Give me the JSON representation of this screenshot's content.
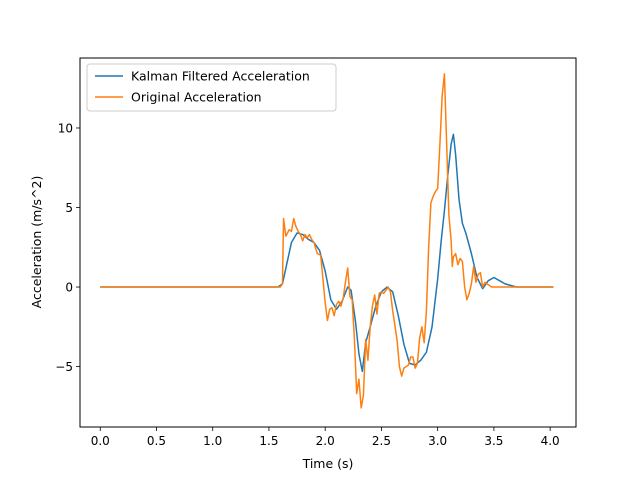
{
  "chart_data": {
    "type": "line",
    "title": "",
    "xlabel": "Time (s)",
    "ylabel": "Acceleration (m/s^2)",
    "xlim": [
      -0.18,
      4.23
    ],
    "ylim": [
      -8.8,
      14.4
    ],
    "xticks": [
      0.0,
      0.5,
      1.0,
      1.5,
      2.0,
      2.5,
      3.0,
      3.5,
      4.0
    ],
    "xtick_labels": [
      "0.0",
      "0.5",
      "1.0",
      "1.5",
      "2.0",
      "2.5",
      "3.0",
      "3.5",
      "4.0"
    ],
    "yticks": [
      -5,
      0,
      5,
      10
    ],
    "ytick_labels": [
      "−5",
      "0",
      "5",
      "10"
    ],
    "grid": false,
    "legend_position": "top-left",
    "series": [
      {
        "name": "Kalman Filtered Acceleration",
        "color": "#1f77b4",
        "x": [
          0.0,
          0.5,
          1.0,
          1.5,
          1.58,
          1.62,
          1.66,
          1.7,
          1.75,
          1.8,
          1.85,
          1.9,
          1.95,
          2.0,
          2.05,
          2.1,
          2.15,
          2.2,
          2.23,
          2.27,
          2.3,
          2.33,
          2.36,
          2.4,
          2.45,
          2.5,
          2.55,
          2.6,
          2.65,
          2.7,
          2.75,
          2.8,
          2.85,
          2.9,
          2.95,
          3.0,
          3.03,
          3.06,
          3.09,
          3.12,
          3.14,
          3.16,
          3.19,
          3.22,
          3.25,
          3.3,
          3.35,
          3.4,
          3.45,
          3.5,
          3.55,
          3.6,
          3.7,
          3.8,
          4.03
        ],
        "y": [
          0.0,
          0.0,
          0.0,
          0.0,
          0.0,
          0.2,
          1.5,
          2.8,
          3.4,
          3.3,
          3.0,
          2.8,
          2.3,
          1.0,
          -0.8,
          -1.4,
          -0.9,
          0.0,
          -0.2,
          -2.2,
          -4.2,
          -5.3,
          -3.5,
          -2.5,
          -1.2,
          -0.3,
          0.0,
          -0.3,
          -1.8,
          -3.6,
          -4.8,
          -4.9,
          -4.6,
          -4.1,
          -2.5,
          0.5,
          2.8,
          4.8,
          7.0,
          9.0,
          9.6,
          8.3,
          5.5,
          4.0,
          3.4,
          2.1,
          0.6,
          -0.1,
          0.4,
          0.6,
          0.4,
          0.2,
          0.0,
          0.0,
          0.0
        ]
      },
      {
        "name": "Original Acceleration",
        "color": "#ff7f0e",
        "x": [
          0.0,
          0.3,
          0.6,
          0.9,
          1.2,
          1.5,
          1.6,
          1.62,
          1.63,
          1.65,
          1.68,
          1.7,
          1.72,
          1.74,
          1.76,
          1.78,
          1.8,
          1.82,
          1.84,
          1.86,
          1.88,
          1.9,
          1.93,
          1.96,
          2.0,
          2.02,
          2.04,
          2.06,
          2.08,
          2.1,
          2.12,
          2.14,
          2.16,
          2.18,
          2.2,
          2.22,
          2.24,
          2.26,
          2.28,
          2.3,
          2.32,
          2.34,
          2.36,
          2.38,
          2.4,
          2.42,
          2.44,
          2.46,
          2.48,
          2.5,
          2.52,
          2.54,
          2.56,
          2.58,
          2.6,
          2.62,
          2.64,
          2.66,
          2.68,
          2.7,
          2.72,
          2.74,
          2.76,
          2.78,
          2.8,
          2.82,
          2.84,
          2.86,
          2.88,
          2.9,
          2.92,
          2.94,
          2.96,
          2.98,
          3.0,
          3.02,
          3.04,
          3.06,
          3.08,
          3.1,
          3.12,
          3.13,
          3.14,
          3.16,
          3.18,
          3.2,
          3.22,
          3.24,
          3.26,
          3.28,
          3.3,
          3.32,
          3.34,
          3.36,
          3.38,
          3.4,
          3.42,
          3.44,
          3.46,
          3.48,
          3.5,
          3.55,
          3.6,
          3.7,
          3.8,
          3.9,
          4.03
        ],
        "y": [
          0.0,
          0.0,
          0.0,
          0.0,
          0.0,
          0.0,
          0.0,
          0.2,
          4.3,
          3.2,
          3.6,
          3.5,
          4.3,
          3.8,
          3.5,
          3.3,
          2.9,
          3.3,
          3.1,
          3.3,
          3.0,
          2.8,
          2.1,
          2.0,
          -1.0,
          -2.1,
          -1.4,
          -1.3,
          -1.8,
          -1.1,
          -0.9,
          -1.2,
          -0.7,
          0.3,
          1.2,
          -0.6,
          -0.8,
          -3.3,
          -6.7,
          -5.8,
          -7.6,
          -6.8,
          -3.3,
          -4.6,
          -2.5,
          -1.2,
          -0.5,
          -1.7,
          -0.4,
          -0.3,
          -0.4,
          -0.2,
          0.0,
          -0.3,
          -1.5,
          -2.4,
          -3.4,
          -5.0,
          -5.6,
          -5.1,
          -5.0,
          -4.9,
          -4.4,
          -4.4,
          -5.1,
          -4.8,
          -3.2,
          -2.5,
          -3.5,
          -1.5,
          2.5,
          5.3,
          5.7,
          6.0,
          6.2,
          9.0,
          12.0,
          13.4,
          9.0,
          4.5,
          2.9,
          1.3,
          1.9,
          2.1,
          1.4,
          1.8,
          1.6,
          0.0,
          -0.8,
          -0.4,
          0.2,
          1.3,
          0.3,
          0.8,
          0.9,
          0.0,
          0.3,
          0.2,
          0.1,
          0.0,
          0.0,
          0.0,
          0.0,
          0.0,
          0.0,
          0.0,
          0.0
        ]
      }
    ]
  }
}
